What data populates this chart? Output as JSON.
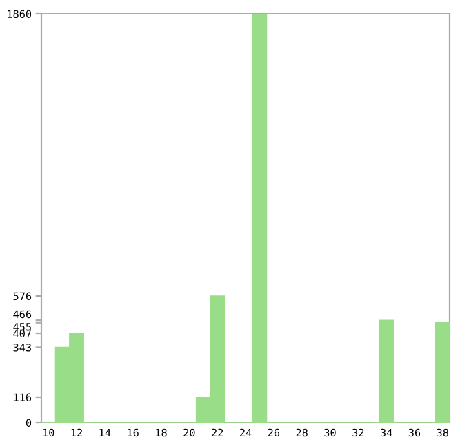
{
  "chart_data": {
    "type": "bar",
    "categories": [
      "10",
      null,
      "12",
      null,
      "14",
      null,
      "16",
      null,
      "18",
      null,
      "20",
      null,
      "22",
      null,
      "24",
      null,
      "26",
      null,
      "28",
      null,
      "30",
      null,
      "32",
      null,
      "34",
      null,
      "36",
      null,
      "38"
    ],
    "series": [
      {
        "color": "#99dd88",
        "values": [
          0,
          343,
          407,
          0,
          0,
          0,
          0,
          0,
          0,
          0,
          0,
          116,
          576,
          0,
          0,
          1860,
          0,
          0,
          0,
          0,
          0,
          0,
          0,
          0,
          466,
          0,
          0,
          0,
          455
        ]
      }
    ],
    "ylim": [
      0,
      1860
    ],
    "yticks": [
      0,
      116,
      343,
      407,
      455,
      466,
      576,
      1860
    ],
    "grid": false
  }
}
